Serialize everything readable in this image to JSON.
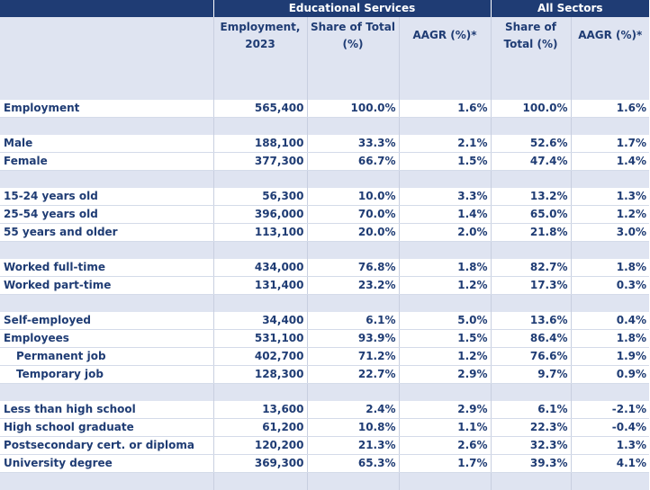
{
  "table": {
    "group_headers": [
      "Educational Services",
      "All Sectors"
    ],
    "column_headers": [
      "Employment, 2023",
      "Share of Total (%)",
      "AAGR (%)*",
      "Share of Total (%)",
      "AAGR (%)*"
    ],
    "sections": [
      {
        "rows": [
          {
            "label": "Employment",
            "indent": false,
            "values": [
              "565,400",
              "100.0%",
              "1.6%",
              "100.0%",
              "1.6%"
            ]
          }
        ]
      },
      {
        "rows": [
          {
            "label": "Male",
            "indent": false,
            "values": [
              "188,100",
              "33.3%",
              "2.1%",
              "52.6%",
              "1.7%"
            ]
          },
          {
            "label": "Female",
            "indent": false,
            "values": [
              "377,300",
              "66.7%",
              "1.5%",
              "47.4%",
              "1.4%"
            ]
          }
        ]
      },
      {
        "rows": [
          {
            "label": "15-24 years old",
            "indent": false,
            "values": [
              "56,300",
              "10.0%",
              "3.3%",
              "13.2%",
              "1.3%"
            ]
          },
          {
            "label": "25-54 years old",
            "indent": false,
            "values": [
              "396,000",
              "70.0%",
              "1.4%",
              "65.0%",
              "1.2%"
            ]
          },
          {
            "label": "55 years and older",
            "indent": false,
            "values": [
              "113,100",
              "20.0%",
              "2.0%",
              "21.8%",
              "3.0%"
            ]
          }
        ]
      },
      {
        "rows": [
          {
            "label": "Worked full-time",
            "indent": false,
            "values": [
              "434,000",
              "76.8%",
              "1.8%",
              "82.7%",
              "1.8%"
            ]
          },
          {
            "label": "Worked part-time",
            "indent": false,
            "values": [
              "131,400",
              "23.2%",
              "1.2%",
              "17.3%",
              "0.3%"
            ]
          }
        ]
      },
      {
        "rows": [
          {
            "label": "Self-employed",
            "indent": false,
            "values": [
              "34,400",
              "6.1%",
              "5.0%",
              "13.6%",
              "0.4%"
            ]
          },
          {
            "label": "Employees",
            "indent": false,
            "values": [
              "531,100",
              "93.9%",
              "1.5%",
              "86.4%",
              "1.8%"
            ]
          },
          {
            "label": "Permanent job",
            "indent": true,
            "values": [
              "402,700",
              "71.2%",
              "1.2%",
              "76.6%",
              "1.9%"
            ]
          },
          {
            "label": "Temporary job",
            "indent": true,
            "values": [
              "128,300",
              "22.7%",
              "2.9%",
              "9.7%",
              "0.9%"
            ]
          }
        ]
      },
      {
        "rows": [
          {
            "label": "Less than high school",
            "indent": false,
            "values": [
              "13,600",
              "2.4%",
              "2.9%",
              "6.1%",
              "-2.1%"
            ]
          },
          {
            "label": "High school graduate",
            "indent": false,
            "values": [
              "61,200",
              "10.8%",
              "1.1%",
              "22.3%",
              "-0.4%"
            ]
          },
          {
            "label": "Postsecondary cert. or diploma",
            "indent": false,
            "values": [
              "120,200",
              "21.3%",
              "2.6%",
              "32.3%",
              "1.3%"
            ]
          },
          {
            "label": "University degree",
            "indent": false,
            "values": [
              "369,300",
              "65.3%",
              "1.7%",
              "39.3%",
              "4.1%"
            ]
          }
        ]
      }
    ]
  },
  "colors": {
    "header_dark": "#1f3c74",
    "header_light": "#dfe4f1",
    "text": "#1f3c74"
  }
}
